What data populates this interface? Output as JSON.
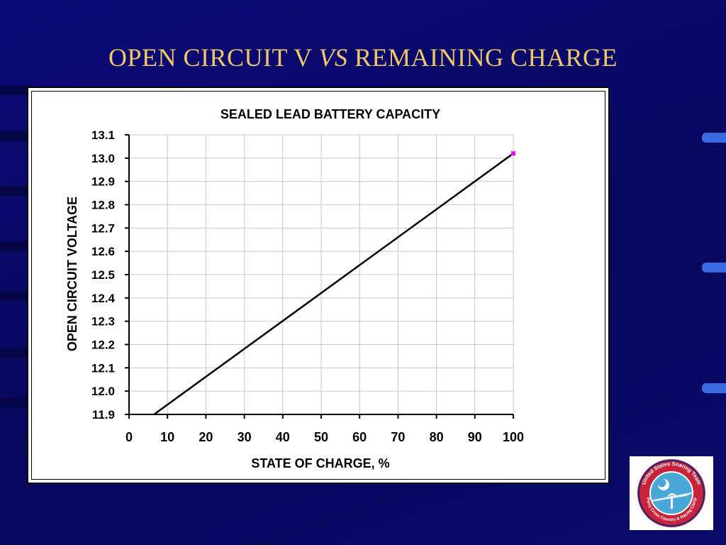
{
  "slide": {
    "title_prefix": "OPEN CIRCUIT V ",
    "title_italic": "VS",
    "title_suffix": " REMAINING CHARGE"
  },
  "logo": {
    "ring_text_top": "United States Soaring Team",
    "ring_text_bottom": "Perry Cross Country & Racing Camp"
  },
  "colors": {
    "background": "#0a0a6e",
    "title": "#f0c76a",
    "line": "#000000",
    "endpoint_marker": "#ff00ff"
  },
  "chart_data": {
    "type": "line",
    "title": "SEALED LEAD BATTERY CAPACITY",
    "xlabel": "STATE OF CHARGE, %",
    "ylabel": "OPEN CIRCUIT VOLTAGE",
    "xlim": [
      0,
      100
    ],
    "ylim": [
      11.9,
      13.1
    ],
    "x_ticks": [
      "0",
      "10",
      "20",
      "30",
      "40",
      "50",
      "60",
      "70",
      "80",
      "90",
      "100"
    ],
    "y_ticks": [
      "13.1",
      "13.0",
      "12.9",
      "12.8",
      "12.7",
      "12.6",
      "12.5",
      "12.4",
      "12.3",
      "12.2",
      "12.1",
      "12.0",
      "11.9"
    ],
    "grid": true,
    "series": [
      {
        "x": [
          6.5,
          100
        ],
        "y": [
          11.9,
          13.02
        ]
      }
    ]
  }
}
